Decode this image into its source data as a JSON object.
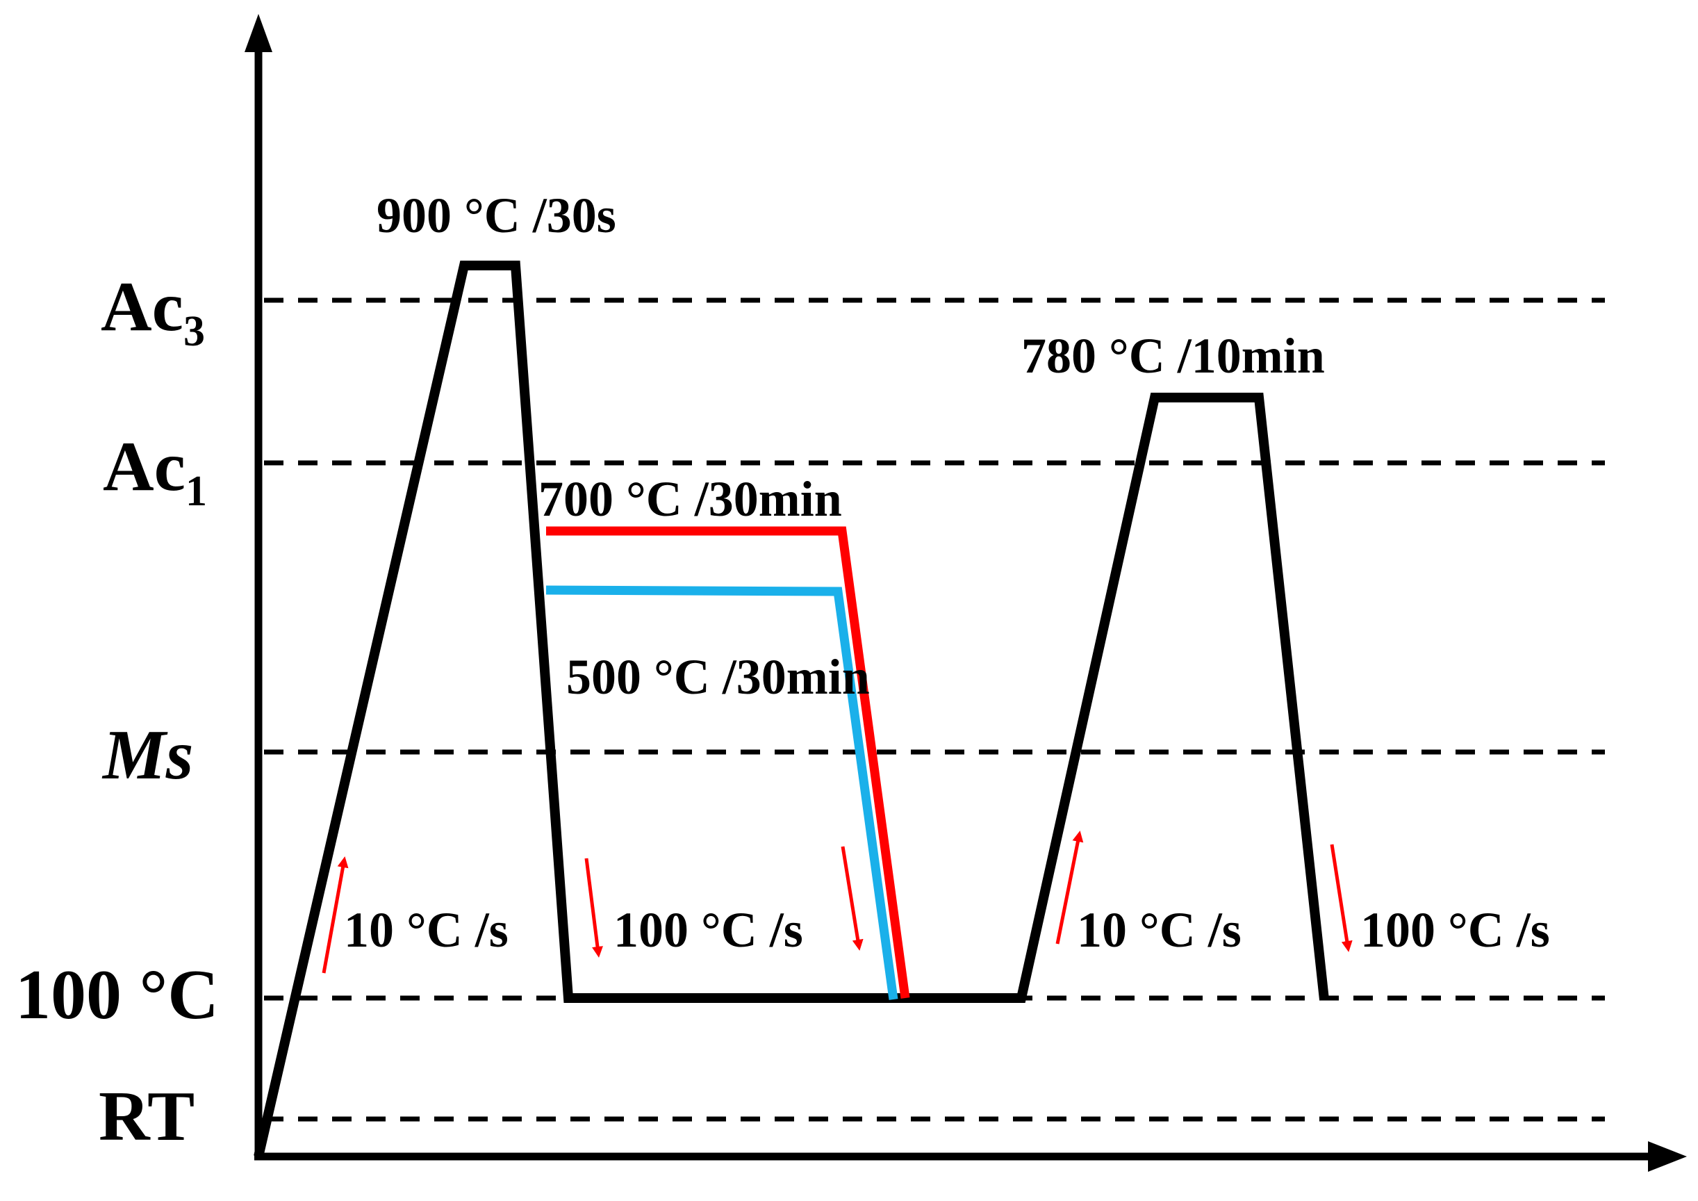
{
  "colors": {
    "main": "#000000",
    "route_700": "#ff0000",
    "route_500": "#1ab0ea",
    "rate_arrow": "#ff0000"
  },
  "y_axis_levels": {
    "ac3": {
      "main": "Ac",
      "sub": "3"
    },
    "ac1": {
      "main": "Ac",
      "sub": "1"
    },
    "ms": "Ms",
    "t100": "100 °C",
    "rt": "RT"
  },
  "annotations": {
    "hold_900": "900 °C /30s",
    "hold_780": "780 °C /10min",
    "hold_700": "700 °C /30min",
    "hold_500": "500 °C /30min"
  },
  "rates": {
    "heat_1": "10 °C /s",
    "cool_1": "100 °C /s",
    "heat_2": "10 °C /s",
    "cool_2": "100 °C /s"
  },
  "arrow_icons": [
    "arrow-up-icon",
    "arrow-down-icon",
    "arrow-down-icon",
    "arrow-up-icon",
    "arrow-down-icon"
  ]
}
